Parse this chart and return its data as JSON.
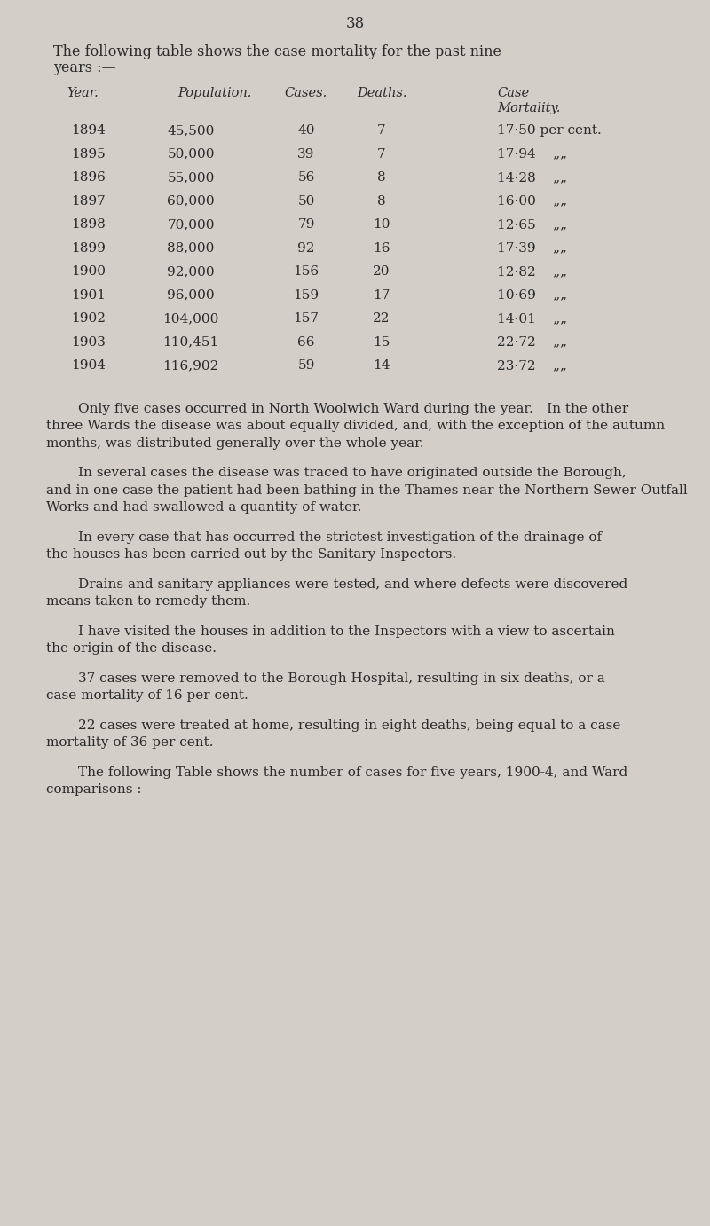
{
  "page_number": "38",
  "bg_color": "#d3cfc8",
  "text_color": "#2a2a2a",
  "page_width": 8.0,
  "page_height": 13.82,
  "dpi": 100,
  "table_headers_line1": [
    "Year.",
    "Population.",
    "Cases.",
    "Deaths.",
    "Case"
  ],
  "table_headers_line2": [
    "",
    "",
    "",
    "",
    "Mortality."
  ],
  "table_data": [
    [
      "1894",
      "45,500",
      "40",
      "7",
      "17·50 per cent."
    ],
    [
      "1895",
      "50,000",
      "39",
      "7",
      "17·94    „„"
    ],
    [
      "1896",
      "55,000",
      "56",
      "8",
      "14·28    „„"
    ],
    [
      "1897",
      "60,000",
      "50",
      "8",
      "16·00    „„"
    ],
    [
      "1898",
      "70,000",
      "79",
      "10",
      "12·65    „„"
    ],
    [
      "1899",
      "88,000",
      "92",
      "16",
      "17·39    „„"
    ],
    [
      "1900",
      "92,000",
      "156",
      "20",
      "12·82    „„"
    ],
    [
      "1901",
      "96,000",
      "159",
      "17",
      "10·69    „„"
    ],
    [
      "1902",
      "104,000",
      "157",
      "22",
      "14·01    „„"
    ],
    [
      "1903",
      "110,451",
      "66",
      "15",
      "22·72    „„"
    ],
    [
      "1904",
      "116,902",
      "59",
      "14",
      "23·72    „„"
    ]
  ],
  "paragraphs": [
    {
      "indent": true,
      "text": "Only five cases occurred in North Woolwich Ward during the year. In the other three Wards the disease was about equally divided, and, with the exception of the autumn months, was distributed generally over the whole year."
    },
    {
      "indent": true,
      "text": "In several cases the disease was traced to have originated outside the Borough, and in one case the patient had been bathing in the Thames near the Northern Sewer Outfall Works and had swallowed a quantity of water."
    },
    {
      "indent": true,
      "text": "In every case that has occurred the strictest investigation of the drainage of the houses has been carried out by the Sanitary Inspectors."
    },
    {
      "indent": true,
      "text": "Drains and sanitary appliances were tested, and where defects were discovered means taken to remedy them."
    },
    {
      "indent": true,
      "text": "I have visited the houses in addition to the Inspectors with a view to ascertain the origin of the disease."
    },
    {
      "indent": true,
      "text": "37 cases were removed to the Borough Hospital, resulting in six deaths, or a case mortality of 16 per cent."
    },
    {
      "indent": true,
      "text": "22 cases were treated at home, resulting in eight deaths, being equal to a case mortality of 36 per cent."
    },
    {
      "indent": true,
      "text": "The following Table shows the number of cases for five years, 1900-4, and Ward comparisons :—"
    }
  ]
}
